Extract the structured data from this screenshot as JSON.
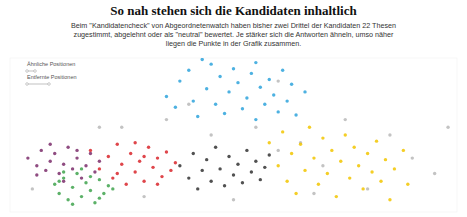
{
  "chart_data": {
    "type": "scatter",
    "title": "So nah stehen sich die Kandidaten inhaltlich",
    "subtitle": "Beim \"Kandidatencheck\" von Abgeordnetenwatch haben bisher zwei Drittel der Kandidaten 22 Thesen zugestimmt, abgelehnt oder als \"neutral\" bewertet. Je stärker sich die Antworten ähneln, umso näher liegen die Punkte in der Grafik zusammen.",
    "annotations": [
      "Ähnliche Positionen",
      "Entfernte Positionen"
    ],
    "xlim": [
      0,
      100
    ],
    "ylim": [
      0,
      100
    ],
    "tick_labels": false,
    "grid": false,
    "series": [
      {
        "color": "#b8b8b8",
        "x": [
          25,
          35,
          45,
          55,
          60,
          65,
          70,
          30,
          50,
          75,
          85,
          90,
          95,
          20,
          40,
          60,
          80,
          5,
          98,
          68
        ],
        "values": [
          55,
          60,
          50,
          55,
          40,
          45,
          30,
          10,
          8,
          60,
          50,
          35,
          25,
          55,
          70,
          85,
          15,
          15,
          55,
          12
        ]
      },
      {
        "color": "#7b2d6b",
        "x": [
          4,
          6,
          7,
          8,
          9,
          10,
          11,
          12,
          13,
          14,
          15,
          16,
          17,
          18,
          19,
          20,
          6,
          9,
          12,
          15
        ],
        "values": [
          35,
          30,
          40,
          27,
          33,
          38,
          25,
          31,
          42,
          28,
          35,
          22,
          30,
          38,
          26,
          33,
          24,
          44,
          20,
          40
        ]
      },
      {
        "color": "#3fa34d",
        "x": [
          10,
          11,
          12,
          13,
          14,
          15,
          16,
          17,
          18,
          19,
          20,
          21,
          22,
          12,
          14,
          16,
          18,
          20,
          23,
          11
        ],
        "values": [
          18,
          12,
          22,
          8,
          16,
          25,
          10,
          19,
          14,
          6,
          21,
          12,
          17,
          26,
          5,
          28,
          23,
          9,
          15,
          20
        ]
      },
      {
        "color": "#d9262b",
        "x": [
          18,
          20,
          22,
          23,
          24,
          25,
          26,
          27,
          28,
          29,
          30,
          31,
          32,
          33,
          34,
          35,
          36,
          37,
          24,
          28,
          30,
          33
        ],
        "values": [
          40,
          28,
          36,
          22,
          44,
          31,
          18,
          38,
          26,
          33,
          20,
          42,
          29,
          35,
          23,
          39,
          27,
          32,
          25,
          45,
          36,
          18
        ]
      },
      {
        "color": "#333333",
        "x": [
          38,
          40,
          41,
          42,
          43,
          44,
          45,
          46,
          47,
          48,
          49,
          50,
          51,
          52,
          53,
          54,
          55,
          56,
          57,
          58
        ],
        "values": [
          30,
          22,
          38,
          15,
          27,
          34,
          20,
          42,
          28,
          17,
          36,
          24,
          31,
          19,
          40,
          26,
          33,
          21,
          29,
          37
        ]
      },
      {
        "color": "#f2c500",
        "x": [
          58,
          60,
          61,
          62,
          63,
          64,
          65,
          66,
          67,
          68,
          69,
          70,
          71,
          72,
          73,
          74,
          75,
          76,
          77,
          78,
          79,
          80,
          81,
          82,
          83,
          84,
          85,
          86,
          88,
          89
        ],
        "values": [
          45,
          30,
          52,
          20,
          38,
          12,
          44,
          27,
          55,
          35,
          18,
          48,
          25,
          40,
          10,
          33,
          50,
          22,
          42,
          30,
          15,
          38,
          26,
          46,
          20,
          34,
          8,
          28,
          40,
          18
        ]
      },
      {
        "color": "#2ea3dc",
        "x": [
          35,
          37,
          38,
          40,
          41,
          42,
          44,
          45,
          46,
          47,
          48,
          49,
          50,
          51,
          52,
          53,
          54,
          55,
          56,
          57,
          58,
          59,
          60,
          61,
          62,
          63,
          64,
          66,
          43,
          55
        ],
        "values": [
          75,
          68,
          85,
          92,
          72,
          62,
          80,
          96,
          70,
          88,
          64,
          78,
          93,
          84,
          67,
          74,
          90,
          60,
          81,
          70,
          86,
          76,
          65,
          92,
          72,
          83,
          63,
          78,
          99,
          97
        ]
      }
    ]
  }
}
